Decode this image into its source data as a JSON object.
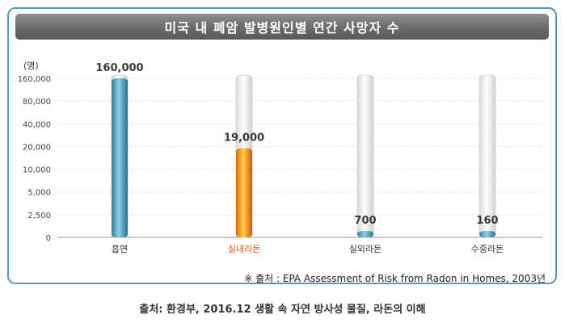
{
  "chart_data": {
    "type": "bar",
    "title": "미국 내 폐암 발병원인별 연간 사망자 수",
    "ylabel": "(명)",
    "y_ticks": [
      "160,000",
      "80,000",
      "40,000",
      "20,000",
      "10,000",
      "5,000",
      "2,500",
      "0"
    ],
    "y_tick_values": [
      160000,
      80000,
      40000,
      20000,
      10000,
      5000,
      2500,
      0
    ],
    "y_scale": "non-linear (each tick doubles, equal spacing)",
    "categories": [
      "흡연",
      "실내라돈",
      "실외라돈",
      "수중라돈"
    ],
    "values": [
      160000,
      19000,
      700,
      160
    ],
    "value_labels": [
      "160,000",
      "19,000",
      "700",
      "160"
    ],
    "bar_colors": [
      "#4a9bb8",
      "#f08a1a",
      "#4a9bb8",
      "#4a9bb8"
    ],
    "highlight_category_color": "#e8531f",
    "grid": true,
    "source_note": "※ 출처 : EPA Assessment of Risk from Radon in Homes, 2003년"
  },
  "caption": "출처: 환경부, 2016.12 생활 속 자연 방사성 물질, 라돈의 이해"
}
